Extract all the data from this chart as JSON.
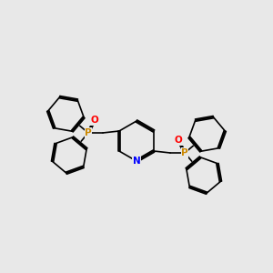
{
  "bg_color": "#e8e8e8",
  "bond_color": "#000000",
  "bond_width": 1.2,
  "atom_colors": {
    "N": "#0000ff",
    "O": "#ff0000",
    "P": "#cc8800",
    "C": "#000000"
  },
  "figsize": [
    3.0,
    3.0
  ],
  "dpi": 100,
  "font_size": 7.5,
  "font_size_small": 6.5
}
